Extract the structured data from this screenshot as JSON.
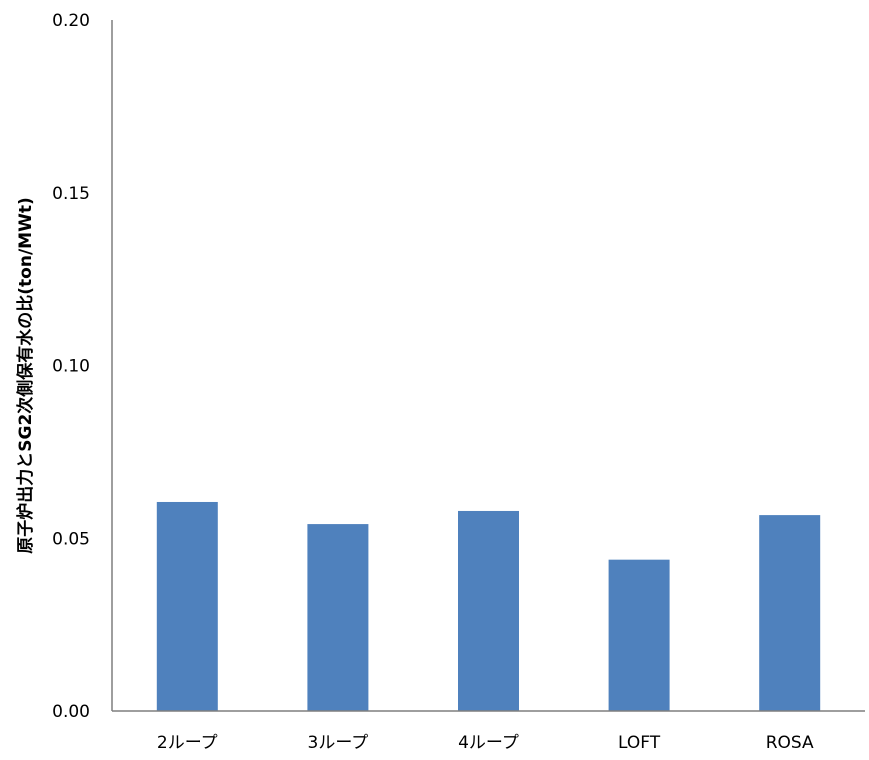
{
  "chart_data": {
    "type": "bar",
    "categories": [
      "2ループ",
      "3ループ",
      "4ループ",
      "LOFT",
      "ROSA"
    ],
    "values": [
      0.0605,
      0.0541,
      0.0579,
      0.0438,
      0.0567
    ],
    "title": "",
    "xlabel": "",
    "ylabel": "原子炉出力とSG2次側保有水の比(ton/MWt)",
    "ylim": [
      0,
      0.2
    ],
    "yticks": [
      "0.00",
      "0.05",
      "0.10",
      "0.15",
      "0.20"
    ],
    "grid": false,
    "legend": "none",
    "bar_color": "#4f81bd",
    "axis_color": "#7f7f7f"
  }
}
